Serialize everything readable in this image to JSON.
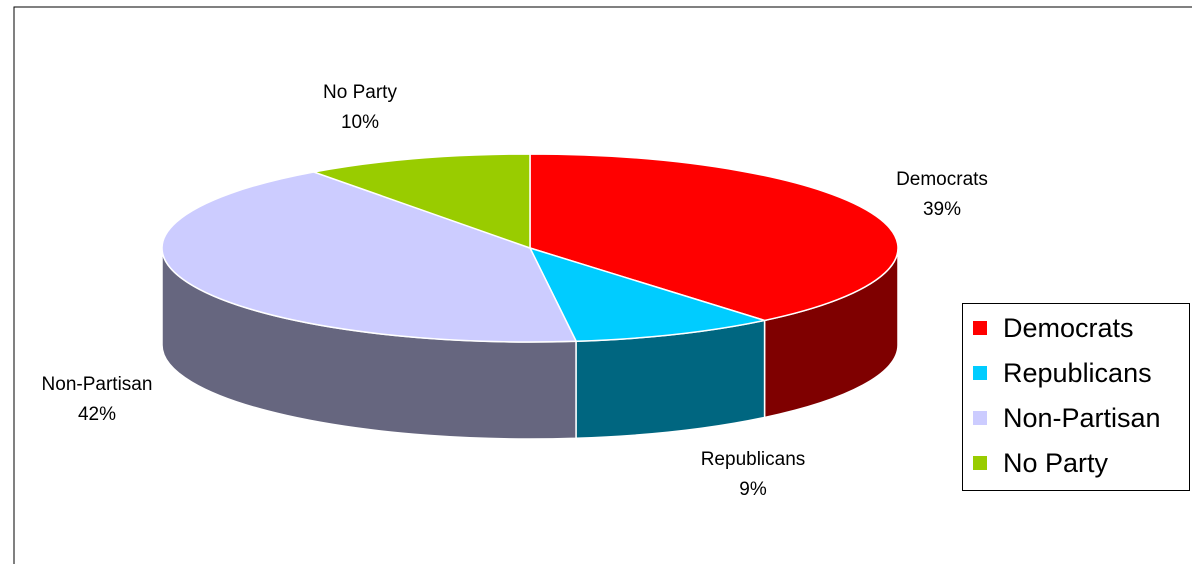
{
  "chart_data": {
    "type": "pie",
    "title": "",
    "categories": [
      "Democrats",
      "Republicans",
      "Non-Partisan",
      "No Party"
    ],
    "values": [
      39,
      9,
      42,
      10
    ],
    "value_labels": [
      "39%",
      "9%",
      "42%",
      "10%"
    ],
    "colors": [
      "#FF0000",
      "#00CCFF",
      "#CCCCFF",
      "#99CC00"
    ],
    "side_colors": [
      "#7F0000",
      "#006680",
      "#66667F",
      "#4C6600"
    ],
    "legend_position": "right",
    "three_d": true
  }
}
